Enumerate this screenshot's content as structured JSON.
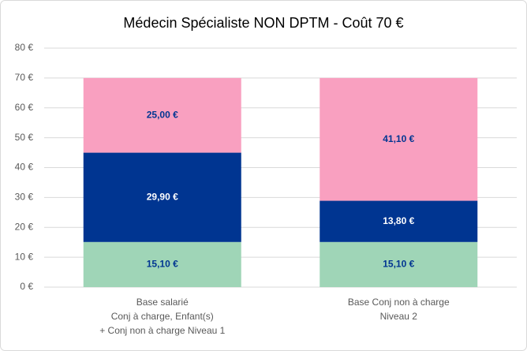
{
  "chart_data": {
    "type": "stacked_bar",
    "title": "Médecin Spécialiste NON DPTM - Coût 70 €",
    "categories": [
      [
        "Base salarié",
        "Conj à charge, Enfant(s)",
        "+ Conj non à charge Niveau 1"
      ],
      [
        "Base Conj non à charge",
        "Niveau 2"
      ]
    ],
    "series": [
      {
        "color": "#9fd5b7",
        "label_color": "#003591",
        "values": [
          15.1,
          15.1
        ],
        "value_labels": [
          "15,10 €",
          "15,10 €"
        ]
      },
      {
        "color": "#003591",
        "label_color": "#ffffff",
        "values": [
          29.9,
          13.8
        ],
        "value_labels": [
          "29,90 €",
          "13,80 €"
        ]
      },
      {
        "color": "#f9a0c0",
        "label_color": "#003591",
        "values": [
          25.0,
          41.1
        ],
        "value_labels": [
          "25,00 €",
          "41,10 €"
        ]
      }
    ],
    "ylim": [
      0,
      80
    ],
    "yticks": [
      {
        "value": 0,
        "label": "0 €"
      },
      {
        "value": 10,
        "label": "10 €"
      },
      {
        "value": 20,
        "label": "20 €"
      },
      {
        "value": 30,
        "label": "30 €"
      },
      {
        "value": 40,
        "label": "40 €"
      },
      {
        "value": 50,
        "label": "50 €"
      },
      {
        "value": 60,
        "label": "60 €"
      },
      {
        "value": 70,
        "label": "70 €"
      },
      {
        "value": 80,
        "label": "80 €"
      }
    ],
    "grid": true
  }
}
